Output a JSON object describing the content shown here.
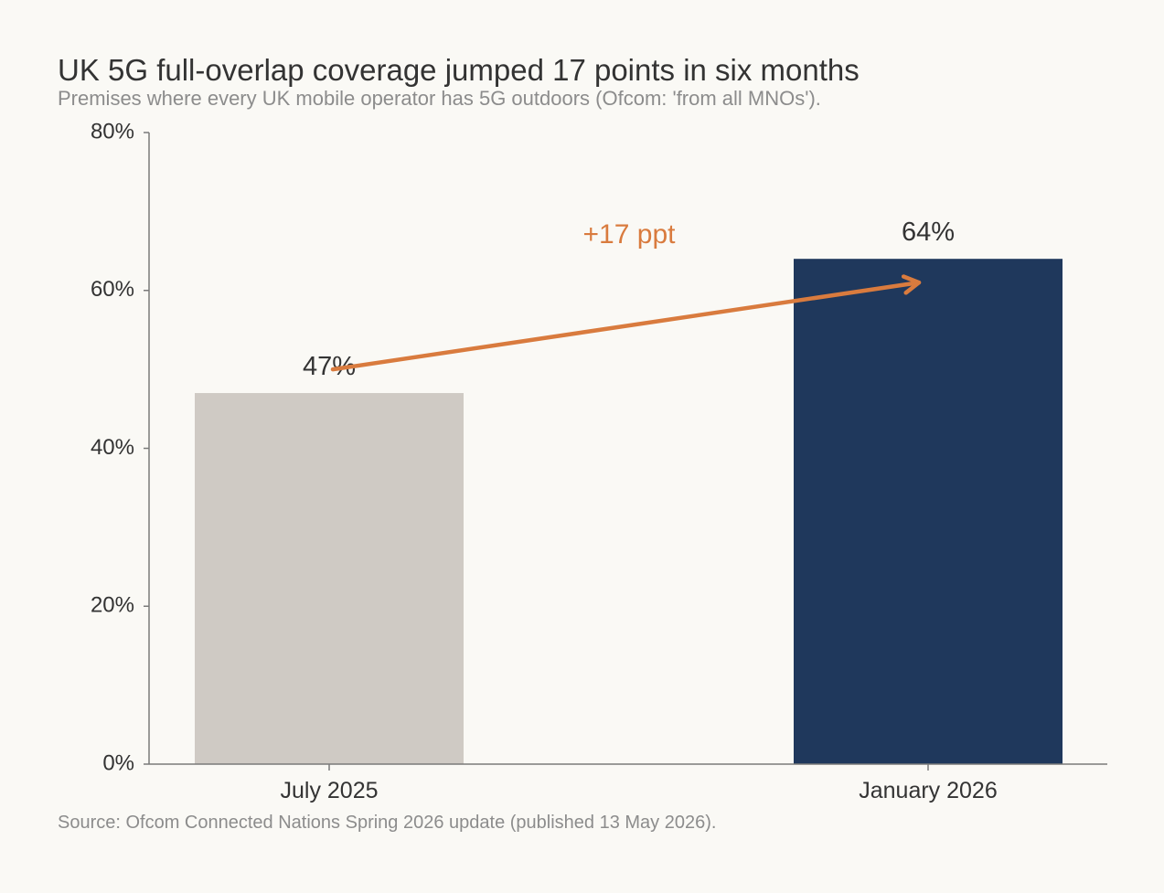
{
  "title": "UK 5G full-overlap coverage jumped 17 points in six months",
  "subtitle": "Premises where every UK mobile operator has 5G outdoors (Ofcom: 'from all MNOs').",
  "source": "Source: Ofcom Connected Nations Spring 2026 update (published 13 May 2026).",
  "chart_data": {
    "type": "bar",
    "categories": [
      "July 2025",
      "January 2026"
    ],
    "values": [
      47,
      64
    ],
    "value_labels": [
      "47%",
      "64%"
    ],
    "bar_colors": [
      "#cfcac4",
      "#1f385c"
    ],
    "ylim": [
      0,
      80
    ],
    "yticks": [
      0,
      20,
      40,
      60,
      80
    ],
    "ytick_labels": [
      "0%",
      "20%",
      "40%",
      "60%",
      "80%"
    ],
    "xlabel": "",
    "ylabel": "",
    "grid": false,
    "annotation": {
      "text": "+17 ppt",
      "color": "#d97b3e",
      "arrow_from": {
        "category": "July 2025",
        "value": 50
      },
      "arrow_to": {
        "category": "January 2026",
        "value": 61
      }
    }
  }
}
